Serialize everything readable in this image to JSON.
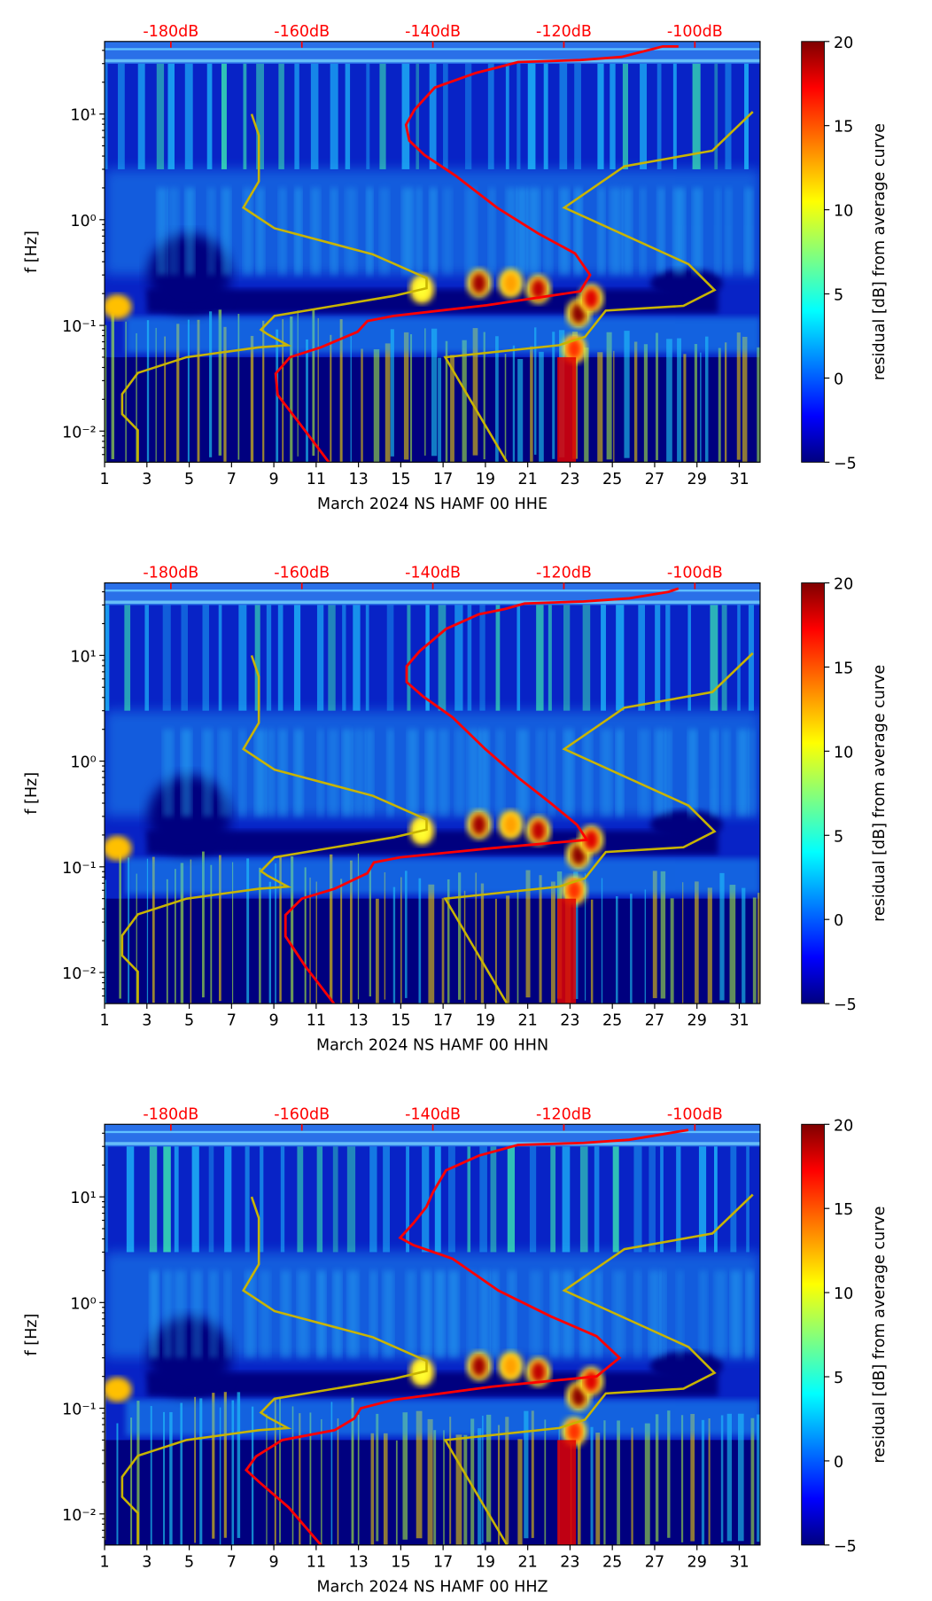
{
  "colors": {
    "red_curve": "#ff0000",
    "yellow_curve": "#c8b400",
    "background": "#00007f"
  },
  "chart_data": [
    {
      "type": "heatmap",
      "xlabel": "March 2024 NS HAMF 00 HHE",
      "ylabel": "f [Hz]",
      "colorbar_label": "residual [dB] from average curve",
      "colorbar_ticks": [
        "20",
        "15",
        "10",
        "5",
        "0",
        "−5"
      ],
      "colorbar_range": [
        -5,
        20
      ],
      "xticks": [
        "1",
        "3",
        "5",
        "7",
        "9",
        "11",
        "13",
        "15",
        "17",
        "19",
        "21",
        "23",
        "25",
        "27",
        "29",
        "31"
      ],
      "xlim": [
        1,
        32
      ],
      "yticks": [
        "10¹",
        "10⁰",
        "10⁻¹",
        "10⁻²"
      ],
      "ylim": [
        0.005,
        48
      ],
      "top_axis_ticks": [
        "-180dB",
        "-160dB",
        "-140dB",
        "-120dB",
        "-100dB"
      ],
      "red_curve_db_vs_hz": [
        [
          -155.8,
          0.005
        ],
        [
          -160.2,
          0.0115
        ],
        [
          -163.7,
          0.022
        ],
        [
          -164,
          0.035
        ],
        [
          -161.8,
          0.05
        ],
        [
          -157.1,
          0.062
        ],
        [
          -151.5,
          0.087
        ],
        [
          -150,
          0.11
        ],
        [
          -146,
          0.123
        ],
        [
          -131.8,
          0.155
        ],
        [
          -117.5,
          0.21
        ],
        [
          -116,
          0.3
        ],
        [
          -118.3,
          0.48
        ],
        [
          -123.9,
          0.74
        ],
        [
          -130.2,
          1.3
        ],
        [
          -136.5,
          2.6
        ],
        [
          -141.3,
          4.1
        ],
        [
          -143.6,
          5.6
        ],
        [
          -144.1,
          7.9
        ],
        [
          -142.8,
          11
        ],
        [
          -139.7,
          17.8
        ],
        [
          -133.4,
          24.5
        ],
        [
          -130.2,
          27.5
        ],
        [
          -127,
          31
        ],
        [
          -117.5,
          32.4
        ],
        [
          -111.2,
          34.7
        ],
        [
          -104.9,
          43.6
        ],
        [
          -102.5,
          43.6
        ]
      ],
      "yellow_curves_day_vs_hz": [
        [
          [
            2.57,
            0.005
          ],
          [
            2.57,
            0.0102
          ],
          [
            1.83,
            0.0145
          ],
          [
            1.83,
            0.0224
          ],
          [
            2.57,
            0.0355
          ],
          [
            4.87,
            0.05
          ],
          [
            8.29,
            0.062
          ],
          [
            9.66,
            0.065
          ],
          [
            8.68,
            0.083
          ],
          [
            8.39,
            0.091
          ],
          [
            9.03,
            0.123
          ],
          [
            14.66,
            0.19
          ],
          [
            16.22,
            0.225
          ],
          [
            16.22,
            0.28
          ],
          [
            13.68,
            0.47
          ],
          [
            9.03,
            0.83
          ],
          [
            7.56,
            1.3
          ],
          [
            8.29,
            2.3
          ],
          [
            8.29,
            6.3
          ],
          [
            7.95,
            10
          ]
        ],
        [
          [
            20.04,
            0.005
          ],
          [
            17.1,
            0.05
          ],
          [
            22.49,
            0.065
          ],
          [
            23.71,
            0.078
          ],
          [
            24.69,
            0.138
          ],
          [
            28.36,
            0.153
          ],
          [
            29.83,
            0.216
          ],
          [
            28.6,
            0.38
          ],
          [
            22.73,
            1.3
          ],
          [
            25.57,
            3.2
          ],
          [
            29.73,
            4.5
          ],
          [
            31.64,
            10.5
          ]
        ]
      ]
    },
    {
      "type": "heatmap",
      "xlabel": "March 2024 NS HAMF 00 HHN",
      "ylabel": "f [Hz]",
      "colorbar_label": "residual [dB] from average curve",
      "colorbar_ticks": [
        "20",
        "15",
        "10",
        "5",
        "0",
        "−5"
      ],
      "colorbar_range": [
        -5,
        20
      ],
      "xticks": [
        "1",
        "3",
        "5",
        "7",
        "9",
        "11",
        "13",
        "15",
        "17",
        "19",
        "21",
        "23",
        "25",
        "27",
        "29",
        "31"
      ],
      "xlim": [
        1,
        32
      ],
      "yticks": [
        "10¹",
        "10⁰",
        "10⁻¹",
        "10⁻²"
      ],
      "ylim": [
        0.005,
        48
      ],
      "top_axis_ticks": [
        "-180dB",
        "-160dB",
        "-140dB",
        "-120dB",
        "-100dB"
      ],
      "red_curve_db_vs_hz": [
        [
          -155,
          0.005
        ],
        [
          -159.5,
          0.0115
        ],
        [
          -162.5,
          0.022
        ],
        [
          -162.5,
          0.035
        ],
        [
          -160,
          0.05
        ],
        [
          -155,
          0.062
        ],
        [
          -150,
          0.087
        ],
        [
          -149,
          0.11
        ],
        [
          -145,
          0.123
        ],
        [
          -131,
          0.15
        ],
        [
          -116.5,
          0.18
        ],
        [
          -118,
          0.25
        ],
        [
          -122,
          0.4
        ],
        [
          -127,
          0.7
        ],
        [
          -132,
          1.3
        ],
        [
          -137,
          2.6
        ],
        [
          -141.5,
          4.1
        ],
        [
          -144,
          5.6
        ],
        [
          -144,
          7.9
        ],
        [
          -142,
          11
        ],
        [
          -138,
          17.8
        ],
        [
          -133,
          24.5
        ],
        [
          -129,
          27.5
        ],
        [
          -126,
          31
        ],
        [
          -117,
          32.4
        ],
        [
          -110,
          34.7
        ],
        [
          -104,
          40
        ],
        [
          -102.5,
          43
        ]
      ],
      "yellow_curves_day_vs_hz": [
        [
          [
            2.57,
            0.005
          ],
          [
            2.57,
            0.0102
          ],
          [
            1.83,
            0.0145
          ],
          [
            1.83,
            0.0224
          ],
          [
            2.57,
            0.0355
          ],
          [
            4.87,
            0.05
          ],
          [
            8.29,
            0.062
          ],
          [
            9.66,
            0.065
          ],
          [
            8.68,
            0.083
          ],
          [
            8.39,
            0.091
          ],
          [
            9.03,
            0.123
          ],
          [
            14.66,
            0.19
          ],
          [
            16.22,
            0.225
          ],
          [
            16.22,
            0.28
          ],
          [
            13.68,
            0.47
          ],
          [
            9.03,
            0.83
          ],
          [
            7.56,
            1.3
          ],
          [
            8.29,
            2.3
          ],
          [
            8.29,
            6.3
          ],
          [
            7.95,
            10
          ]
        ],
        [
          [
            20.04,
            0.005
          ],
          [
            17.1,
            0.05
          ],
          [
            22.49,
            0.065
          ],
          [
            23.71,
            0.078
          ],
          [
            24.69,
            0.138
          ],
          [
            28.36,
            0.153
          ],
          [
            29.83,
            0.216
          ],
          [
            28.6,
            0.38
          ],
          [
            22.73,
            1.3
          ],
          [
            25.57,
            3.2
          ],
          [
            29.73,
            4.5
          ],
          [
            31.64,
            10.5
          ]
        ]
      ]
    },
    {
      "type": "heatmap",
      "xlabel": "March 2024 NS HAMF 00 HHZ",
      "ylabel": "f [Hz]",
      "colorbar_label": "residual [dB] from average curve",
      "colorbar_ticks": [
        "20",
        "15",
        "10",
        "5",
        "0",
        "−5"
      ],
      "colorbar_range": [
        -5,
        20
      ],
      "xticks": [
        "1",
        "3",
        "5",
        "7",
        "9",
        "11",
        "13",
        "15",
        "17",
        "19",
        "21",
        "23",
        "25",
        "27",
        "29",
        "31"
      ],
      "xlim": [
        1,
        32
      ],
      "yticks": [
        "10¹",
        "10⁰",
        "10⁻¹",
        "10⁻²"
      ],
      "ylim": [
        0.005,
        48
      ],
      "top_axis_ticks": [
        "-180dB",
        "-160dB",
        "-140dB",
        "-120dB",
        "-100dB"
      ],
      "red_curve_db_vs_hz": [
        [
          -157,
          0.005
        ],
        [
          -162,
          0.0115
        ],
        [
          -166.5,
          0.02
        ],
        [
          -168.5,
          0.026
        ],
        [
          -167,
          0.035
        ],
        [
          -163,
          0.05
        ],
        [
          -155,
          0.062
        ],
        [
          -152,
          0.08
        ],
        [
          -151,
          0.1
        ],
        [
          -146,
          0.12
        ],
        [
          -131,
          0.16
        ],
        [
          -115,
          0.2
        ],
        [
          -111.5,
          0.3
        ],
        [
          -115,
          0.48
        ],
        [
          -122,
          0.74
        ],
        [
          -130,
          1.3
        ],
        [
          -137,
          2.6
        ],
        [
          -143,
          3.5
        ],
        [
          -145,
          4.1
        ],
        [
          -143,
          5.6
        ],
        [
          -141,
          8
        ],
        [
          -140,
          11
        ],
        [
          -138,
          17.8
        ],
        [
          -133,
          24.5
        ],
        [
          -127,
          31
        ],
        [
          -117,
          32.4
        ],
        [
          -110,
          34.7
        ],
        [
          -104,
          40
        ],
        [
          -101,
          43
        ]
      ],
      "yellow_curves_day_vs_hz": [
        [
          [
            2.57,
            0.005
          ],
          [
            2.57,
            0.0102
          ],
          [
            1.83,
            0.0145
          ],
          [
            1.83,
            0.0224
          ],
          [
            2.57,
            0.0355
          ],
          [
            4.87,
            0.05
          ],
          [
            8.29,
            0.062
          ],
          [
            9.66,
            0.065
          ],
          [
            8.68,
            0.083
          ],
          [
            8.39,
            0.091
          ],
          [
            9.03,
            0.123
          ],
          [
            14.66,
            0.19
          ],
          [
            16.22,
            0.225
          ],
          [
            16.22,
            0.28
          ],
          [
            13.68,
            0.47
          ],
          [
            9.03,
            0.83
          ],
          [
            7.56,
            1.3
          ],
          [
            8.29,
            2.3
          ],
          [
            8.29,
            6.3
          ],
          [
            7.95,
            10
          ]
        ],
        [
          [
            20.04,
            0.005
          ],
          [
            17.1,
            0.05
          ],
          [
            22.49,
            0.065
          ],
          [
            23.71,
            0.078
          ],
          [
            24.69,
            0.138
          ],
          [
            28.36,
            0.153
          ],
          [
            29.83,
            0.216
          ],
          [
            28.6,
            0.38
          ],
          [
            22.73,
            1.3
          ],
          [
            25.57,
            3.2
          ],
          [
            29.73,
            4.5
          ],
          [
            31.64,
            10.5
          ]
        ]
      ]
    }
  ]
}
